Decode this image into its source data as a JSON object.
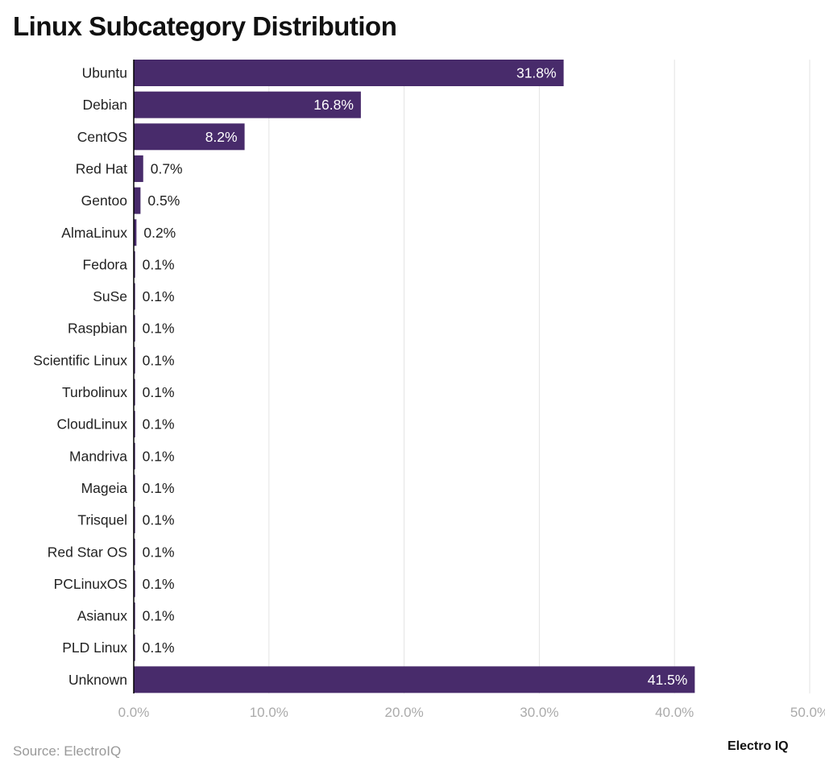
{
  "chart_data": {
    "type": "bar",
    "orientation": "horizontal",
    "title": "Linux Subcategory Distribution",
    "categories": [
      "Ubuntu",
      "Debian",
      "CentOS",
      "Red Hat",
      "Gentoo",
      "AlmaLinux",
      "Fedora",
      "SuSe",
      "Raspbian",
      "Scientific Linux",
      "Turbolinux",
      "CloudLinux",
      "Mandriva",
      "Mageia",
      "Trisquel",
      "Red Star OS",
      "PCLinuxOS",
      "Asianux",
      "PLD Linux",
      "Unknown"
    ],
    "values": [
      31.8,
      16.8,
      8.2,
      0.7,
      0.5,
      0.2,
      0.1,
      0.1,
      0.1,
      0.1,
      0.1,
      0.1,
      0.1,
      0.1,
      0.1,
      0.1,
      0.1,
      0.1,
      0.1,
      41.5
    ],
    "value_labels": [
      "31.8%",
      "16.8%",
      "8.2%",
      "0.7%",
      "0.5%",
      "0.2%",
      "0.1%",
      "0.1%",
      "0.1%",
      "0.1%",
      "0.1%",
      "0.1%",
      "0.1%",
      "0.1%",
      "0.1%",
      "0.1%",
      "0.1%",
      "0.1%",
      "0.1%",
      "41.5%"
    ],
    "xlim": [
      0,
      50
    ],
    "xticks": [
      0,
      10,
      20,
      30,
      40,
      50
    ],
    "xtick_labels": [
      "0.0%",
      "10.0%",
      "20.0%",
      "30.0%",
      "40.0%",
      "50.0%"
    ],
    "xlabel": "",
    "ylabel": "",
    "grid": "vertical",
    "legend": "none",
    "bar_color": "#482b6b"
  },
  "footer": {
    "source": "Source: ElectroIQ",
    "brand": "Electro IQ"
  }
}
